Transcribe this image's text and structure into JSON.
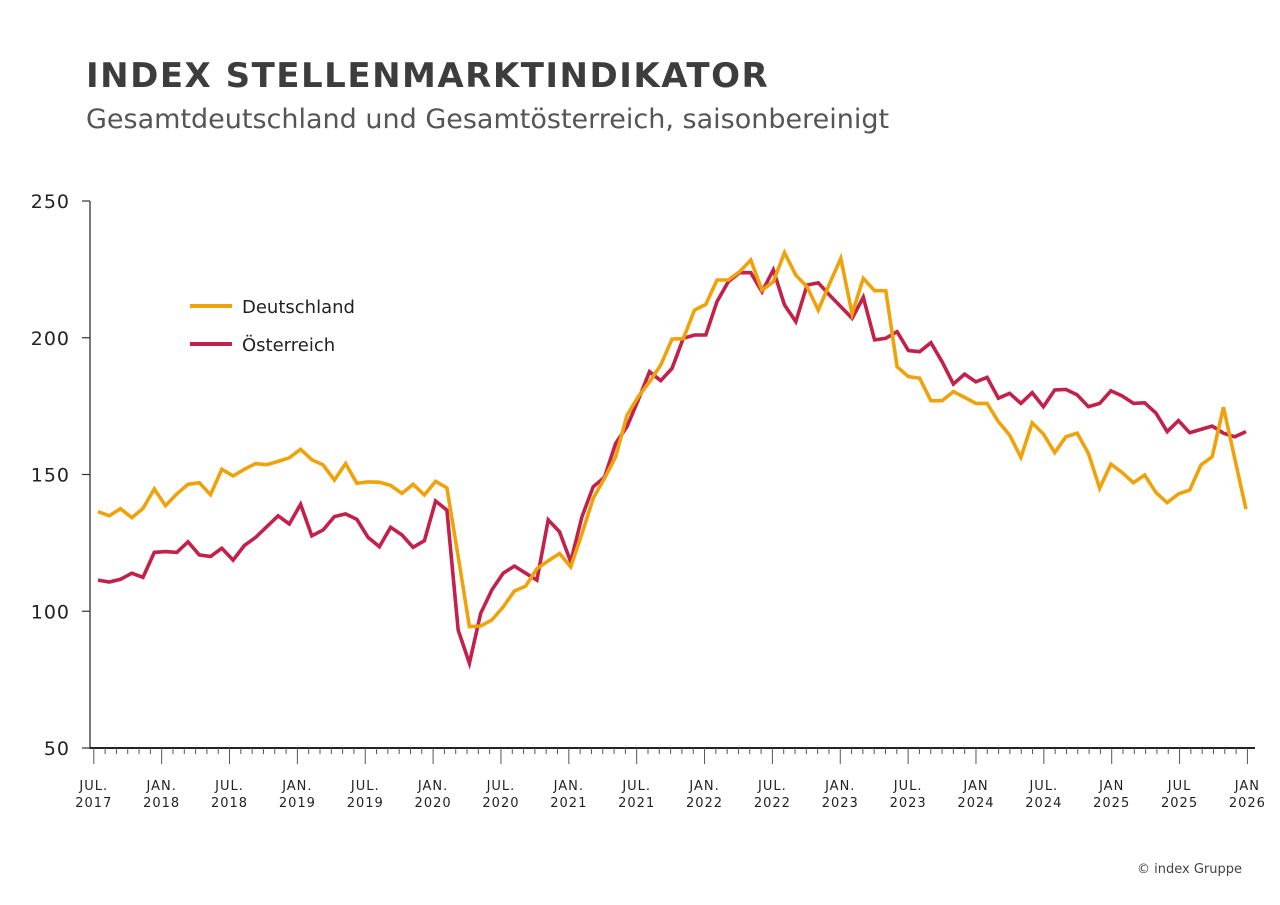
{
  "title": "INDEX STELLENMARKTINDIKATOR",
  "subtitle": "Gesamtdeutschland und Gesamtösterreich, saisonbereinigt",
  "copyright": "© index Gruppe",
  "chart_data": {
    "type": "line",
    "title": "INDEX STELLENMARKTINDIKATOR",
    "subtitle": "Gesamtdeutschland und Gesamtösterreich, saisonbereinigt",
    "x_start": "2017-07",
    "x_end": "2026-01",
    "x_frequency": "monthly",
    "ylim": [
      50,
      250
    ],
    "yticks": [
      50,
      100,
      150,
      200,
      250
    ],
    "xtick_labels": [
      [
        "JUL.",
        "2017"
      ],
      [
        "JAN.",
        "2018"
      ],
      [
        "JUL.",
        "2018"
      ],
      [
        "JAN.",
        "2019"
      ],
      [
        "JUL.",
        "2019"
      ],
      [
        "JAN.",
        "2020"
      ],
      [
        "JUL.",
        "2020"
      ],
      [
        "JAN.",
        "2021"
      ],
      [
        "JUL.",
        "2021"
      ],
      [
        "JAN.",
        "2022"
      ],
      [
        "JUL.",
        "2022"
      ],
      [
        "JAN.",
        "2023"
      ],
      [
        "JUL.",
        "2023"
      ],
      [
        "JAN",
        "2024"
      ],
      [
        "JUL.",
        "2024"
      ],
      [
        "JAN",
        "2025"
      ],
      [
        "JUL",
        "2025"
      ],
      [
        "JAN",
        "2026"
      ]
    ],
    "grid": false,
    "legend_position": "upper-left",
    "series": [
      {
        "name": "Deutschland",
        "color": "#f0a20a",
        "values": [
          136.4,
          134.9,
          137.5,
          134.2,
          137.6,
          144.7,
          138.6,
          142.9,
          146.4,
          147.0,
          142.6,
          151.9,
          149.5,
          151.9,
          154.0,
          153.6,
          154.8,
          156.1,
          159.2,
          155.4,
          153.5,
          148.0,
          154.0,
          146.8,
          147.3,
          147.2,
          146.0,
          143.1,
          146.4,
          142.5,
          147.5,
          145.1,
          120.0,
          94.4,
          94.6,
          96.8,
          101.6,
          107.4,
          109.2,
          115.6,
          118.4,
          121.1,
          116.2,
          128.4,
          141.3,
          148.6,
          156.5,
          171.7,
          178.4,
          183.9,
          190.0,
          199.5,
          199.7,
          210.1,
          212.2,
          221.1,
          221.1,
          224.1,
          228.4,
          217.4,
          220.5,
          231.1,
          222.9,
          218.6,
          210.1,
          219.8,
          229.0,
          208.8,
          221.7,
          217.2,
          217.2,
          189.4,
          185.8,
          185.2,
          177.0,
          177.0,
          180.3,
          178.2,
          176.0,
          176.0,
          169.3,
          164.4,
          156.3,
          168.9,
          164.8,
          158.0,
          163.8,
          165.1,
          157.7,
          145.0,
          153.8,
          150.7,
          147.0,
          149.8,
          143.4,
          139.7,
          142.9,
          144.3,
          153.5,
          156.5,
          174.6,
          155.9,
          137.3
        ]
      },
      {
        "name": "Österreich",
        "color": "#c2214a",
        "values": [
          111.4,
          110.7,
          111.7,
          113.9,
          112.4,
          121.5,
          121.8,
          121.5,
          125.4,
          120.6,
          120.0,
          123.0,
          118.7,
          124.0,
          127.0,
          130.9,
          134.9,
          131.9,
          139.1,
          127.6,
          129.7,
          134.6,
          135.6,
          133.6,
          127.0,
          123.6,
          130.7,
          127.9,
          123.4,
          125.8,
          140.3,
          137.0,
          93.1,
          81.0,
          99.2,
          107.8,
          113.9,
          116.5,
          113.9,
          111.4,
          133.4,
          129.1,
          118.1,
          134.6,
          145.5,
          149.0,
          161.4,
          167.5,
          177.2,
          187.6,
          184.3,
          188.8,
          199.8,
          201.0,
          201.0,
          213.2,
          220.5,
          223.8,
          223.8,
          216.8,
          224.8,
          212.0,
          205.9,
          219.3,
          220.1,
          215.6,
          211.4,
          207.1,
          214.8,
          199.2,
          199.8,
          202.2,
          195.3,
          194.9,
          198.2,
          191.2,
          183.1,
          186.7,
          183.9,
          185.5,
          177.9,
          179.7,
          176.0,
          179.9,
          174.8,
          180.9,
          181.1,
          179.1,
          174.8,
          176.0,
          180.6,
          178.7,
          176.0,
          176.2,
          172.4,
          165.7,
          169.7,
          165.3,
          166.5,
          167.7,
          165.1,
          163.8,
          165.7
        ]
      }
    ]
  }
}
